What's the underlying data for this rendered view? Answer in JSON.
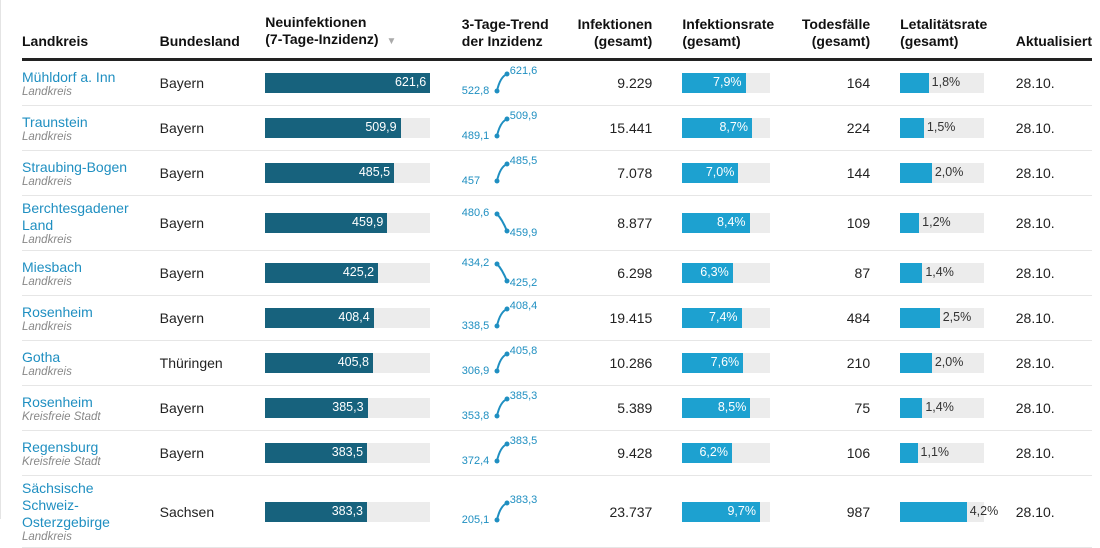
{
  "colors": {
    "incidence": "#17627d",
    "rate": "#1da1d0",
    "track": "#ececec",
    "link": "#1f8fc1"
  },
  "header": {
    "landkreis": "Landkreis",
    "bundesland": "Bundesland",
    "inzidenz_1": "Neuinfektionen",
    "inzidenz_2": "(7-Tage-Inzidenz)",
    "sort_icon": "▼",
    "trend_1": "3-Tage-Trend",
    "trend_2": "der Inzidenz",
    "inf_1": "Infektionen",
    "inf_2": "(gesamt)",
    "rate_1": "Infektionsrate",
    "rate_2": "(gesamt)",
    "tod_1": "Todesfälle",
    "tod_2": "(gesamt)",
    "let_1": "Letalitätsrate",
    "let_2": "(gesamt)",
    "akt": "Aktualisiert"
  },
  "rows": [
    {
      "name": "Mühldorf a. Inn",
      "type": "Landkreis",
      "land": "Bayern",
      "inz": "621,6",
      "inzv": 621.6,
      "t0": "522,8",
      "t1": "621,6",
      "inf": "9.229",
      "rate": "7,9%",
      "ratev": 7.9,
      "tod": "164",
      "let": "1,8%",
      "letv": 1.8,
      "akt": "28.10."
    },
    {
      "name": "Traunstein",
      "type": "Landkreis",
      "land": "Bayern",
      "inz": "509,9",
      "inzv": 509.9,
      "t0": "489,1",
      "t1": "509,9",
      "inf": "15.441",
      "rate": "8,7%",
      "ratev": 8.7,
      "tod": "224",
      "let": "1,5%",
      "letv": 1.5,
      "akt": "28.10."
    },
    {
      "name": "Straubing-Bogen",
      "type": "Landkreis",
      "land": "Bayern",
      "inz": "485,5",
      "inzv": 485.5,
      "t0": "457",
      "t1": "485,5",
      "inf": "7.078",
      "rate": "7,0%",
      "ratev": 7.0,
      "tod": "144",
      "let": "2,0%",
      "letv": 2.0,
      "akt": "28.10."
    },
    {
      "name": "Berchtesgadener Land",
      "type": "Landkreis",
      "land": "Bayern",
      "inz": "459,9",
      "inzv": 459.9,
      "t0": "480,6",
      "t1": "459,9",
      "inf": "8.877",
      "rate": "8,4%",
      "ratev": 8.4,
      "tod": "109",
      "let": "1,2%",
      "letv": 1.2,
      "akt": "28.10."
    },
    {
      "name": "Miesbach",
      "type": "Landkreis",
      "land": "Bayern",
      "inz": "425,2",
      "inzv": 425.2,
      "t0": "434,2",
      "t1": "425,2",
      "inf": "6.298",
      "rate": "6,3%",
      "ratev": 6.3,
      "tod": "87",
      "let": "1,4%",
      "letv": 1.4,
      "akt": "28.10."
    },
    {
      "name": "Rosenheim",
      "type": "Landkreis",
      "land": "Bayern",
      "inz": "408,4",
      "inzv": 408.4,
      "t0": "338,5",
      "t1": "408,4",
      "inf": "19.415",
      "rate": "7,4%",
      "ratev": 7.4,
      "tod": "484",
      "let": "2,5%",
      "letv": 2.5,
      "akt": "28.10."
    },
    {
      "name": "Gotha",
      "type": "Landkreis",
      "land": "Thüringen",
      "inz": "405,8",
      "inzv": 405.8,
      "t0": "306,9",
      "t1": "405,8",
      "inf": "10.286",
      "rate": "7,6%",
      "ratev": 7.6,
      "tod": "210",
      "let": "2,0%",
      "letv": 2.0,
      "akt": "28.10."
    },
    {
      "name": "Rosenheim",
      "type": "Kreisfreie Stadt",
      "land": "Bayern",
      "inz": "385,3",
      "inzv": 385.3,
      "t0": "353,8",
      "t1": "385,3",
      "inf": "5.389",
      "rate": "8,5%",
      "ratev": 8.5,
      "tod": "75",
      "let": "1,4%",
      "letv": 1.4,
      "akt": "28.10."
    },
    {
      "name": "Regensburg",
      "type": "Kreisfreie Stadt",
      "land": "Bayern",
      "inz": "383,5",
      "inzv": 383.5,
      "t0": "372,4",
      "t1": "383,5",
      "inf": "9.428",
      "rate": "6,2%",
      "ratev": 6.2,
      "tod": "106",
      "let": "1,1%",
      "letv": 1.1,
      "akt": "28.10."
    },
    {
      "name": "Sächsische Schweiz-Osterzgebirge",
      "type": "Landkreis",
      "land": "Sachsen",
      "inz": "383,3",
      "inzv": 383.3,
      "t0": "205,1",
      "t1": "383,3",
      "inf": "23.737",
      "rate": "9,7%",
      "ratev": 9.7,
      "tod": "987",
      "let": "4,2%",
      "letv": 4.2,
      "akt": "28.10."
    }
  ]
}
